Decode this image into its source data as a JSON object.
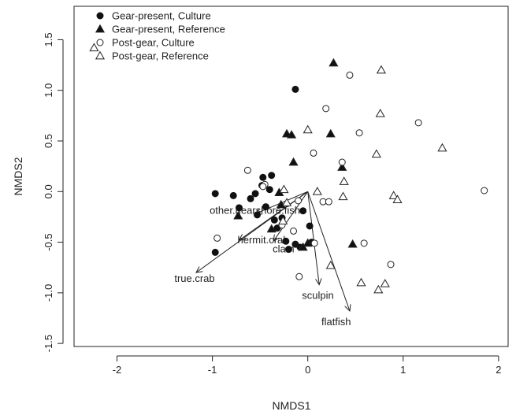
{
  "chart_data": {
    "type": "scatter",
    "title": "",
    "xlabel": "NMDS1",
    "ylabel": "NMDS2",
    "xlim": [
      -2.45,
      2.1
    ],
    "ylim": [
      -1.53,
      1.83
    ],
    "xticks": [
      -2,
      -1,
      0,
      1,
      2
    ],
    "xtick_labels": [
      "-2",
      "-1",
      "0",
      "1",
      "2"
    ],
    "yticks": [
      -1.5,
      -1.0,
      -0.5,
      0.0,
      0.5,
      1.0,
      1.5
    ],
    "ytick_labels": [
      "-1.5",
      "-1.0",
      "-0.5",
      "0.0",
      "0.5",
      "1.0",
      "1.5"
    ],
    "grid": false,
    "legend_position": "top-left",
    "series": [
      {
        "name": "Gear-present, Culture",
        "marker": "filled-circle",
        "points": [
          [
            -0.97,
            -0.02
          ],
          [
            -0.97,
            -0.6
          ],
          [
            -0.78,
            -0.04
          ],
          [
            -0.72,
            -0.16
          ],
          [
            -0.6,
            -0.07
          ],
          [
            -0.55,
            -0.02
          ],
          [
            -0.53,
            -0.23
          ],
          [
            -0.48,
            0.06
          ],
          [
            -0.47,
            0.14
          ],
          [
            -0.44,
            -0.15
          ],
          [
            -0.4,
            0.02
          ],
          [
            -0.38,
            0.16
          ],
          [
            -0.35,
            -0.28
          ],
          [
            -0.32,
            -0.36
          ],
          [
            -0.27,
            -0.26
          ],
          [
            -0.2,
            -0.57
          ],
          [
            -0.13,
            1.01
          ],
          [
            -0.13,
            -0.52
          ],
          [
            -0.08,
            -0.55
          ],
          [
            -0.05,
            -0.19
          ],
          [
            0.02,
            -0.34
          ],
          [
            0.04,
            -0.5
          ],
          [
            -0.23,
            -0.49
          ]
        ]
      },
      {
        "name": "Gear-present, Reference",
        "marker": "filled-triangle",
        "points": [
          [
            0.27,
            1.27
          ],
          [
            -0.22,
            0.57
          ],
          [
            -0.17,
            0.56
          ],
          [
            0.24,
            0.57
          ],
          [
            -0.15,
            0.29
          ],
          [
            0.36,
            0.24
          ],
          [
            -0.3,
            -0.01
          ],
          [
            -0.28,
            -0.13
          ],
          [
            -0.38,
            -0.37
          ],
          [
            0.0,
            -0.51
          ],
          [
            -0.05,
            -0.55
          ],
          [
            0.47,
            -0.52
          ],
          [
            -0.73,
            -0.24
          ]
        ]
      },
      {
        "name": "Post-gear, Culture",
        "marker": "open-circle",
        "points": [
          [
            0.44,
            1.15
          ],
          [
            0.19,
            0.82
          ],
          [
            0.54,
            0.58
          ],
          [
            1.16,
            0.68
          ],
          [
            0.06,
            0.38
          ],
          [
            0.36,
            0.29
          ],
          [
            1.85,
            0.01
          ],
          [
            -0.63,
            0.21
          ],
          [
            -0.45,
            0.07
          ],
          [
            -0.47,
            0.05
          ],
          [
            -0.1,
            -0.09
          ],
          [
            0.16,
            -0.1
          ],
          [
            0.22,
            -0.1
          ],
          [
            -0.27,
            -0.33
          ],
          [
            -0.15,
            -0.39
          ],
          [
            0.07,
            -0.51
          ],
          [
            0.59,
            -0.51
          ],
          [
            0.87,
            -0.72
          ],
          [
            -0.09,
            -0.84
          ],
          [
            -0.95,
            -0.46
          ]
        ]
      },
      {
        "name": "Post-gear, Reference",
        "marker": "open-triangle",
        "points": [
          [
            -2.24,
            1.42
          ],
          [
            0.77,
            1.2
          ],
          [
            0.76,
            0.77
          ],
          [
            0.0,
            0.61
          ],
          [
            1.41,
            0.43
          ],
          [
            0.72,
            0.37
          ],
          [
            0.38,
            0.1
          ],
          [
            -0.25,
            0.02
          ],
          [
            0.1,
            0.0
          ],
          [
            0.37,
            -0.05
          ],
          [
            0.9,
            -0.04
          ],
          [
            0.94,
            -0.08
          ],
          [
            -0.22,
            -0.11
          ],
          [
            -0.26,
            -0.29
          ],
          [
            0.24,
            -0.73
          ],
          [
            0.56,
            -0.9
          ],
          [
            0.81,
            -0.91
          ],
          [
            0.74,
            -0.97
          ]
        ]
      }
    ],
    "vectors": [
      {
        "label": "true.crab",
        "x": -1.17,
        "y": -0.8
      },
      {
        "label": "other.nearshore.fish",
        "x": -0.55,
        "y": -0.22
      },
      {
        "label": "hermit.crab",
        "x": -0.72,
        "y": -0.48
      },
      {
        "label": "clam",
        "x": -0.36,
        "y": -0.49
      },
      {
        "label": "sculpin",
        "x": 0.12,
        "y": -0.92
      },
      {
        "label": "flatfish",
        "x": 0.44,
        "y": -1.18
      }
    ]
  }
}
